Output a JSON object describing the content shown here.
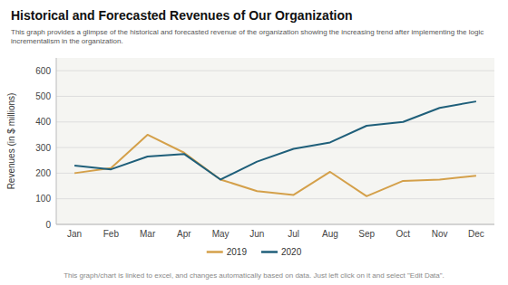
{
  "chart_data": {
    "type": "line",
    "title": "Historical and Forecasted Revenues of Our Organization",
    "subtitle": "This graph provides a glimpse of the historical and forecasted revenue of the organization showing the increasing trend after implementing the logic incrementalism in the organization.",
    "footer": "This graph/chart is linked to excel, and changes automatically based on data. Just left click on it and select \"Edit Data\".",
    "ylabel": "Revenues (in $ millions)",
    "categories": [
      "Jan",
      "Feb",
      "Mar",
      "Apr",
      "May",
      "Jun",
      "Jul",
      "Aug",
      "Sep",
      "Oct",
      "Nov",
      "Dec"
    ],
    "series": [
      {
        "name": "2019",
        "color": "#D4A04A",
        "values": [
          200,
          220,
          350,
          280,
          175,
          130,
          115,
          205,
          110,
          170,
          175,
          190
        ]
      },
      {
        "name": "2020",
        "color": "#1F5F7A",
        "values": [
          230,
          215,
          265,
          275,
          175,
          245,
          295,
          320,
          385,
          400,
          455,
          480
        ]
      }
    ],
    "ylim": [
      0,
      650
    ],
    "yticks": [
      0,
      100,
      200,
      300,
      400,
      500,
      600
    ],
    "grid": true,
    "legend": "bottom"
  }
}
